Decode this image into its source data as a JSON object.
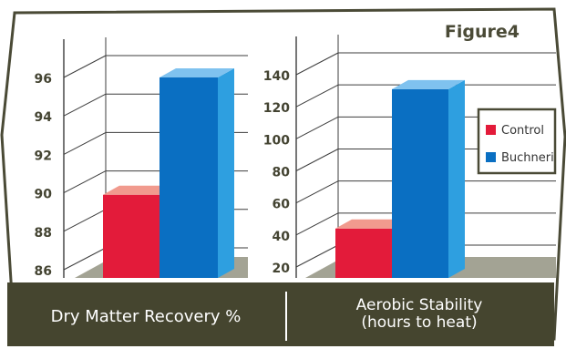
{
  "figure_label": "Figure4",
  "colors": {
    "frame": "#4a4a36",
    "band": "#45452f",
    "floor": "#a3a394",
    "control_front": "#e31b3a",
    "control_top": "#f19a8e",
    "buchneri_front": "#0a6fc2",
    "buchneri_side": "#2e9fe0",
    "buchneri_top": "#7fc2ef",
    "grid": "#3d3d3d",
    "tick_text": "#444432"
  },
  "chart_data": [
    {
      "type": "bar",
      "title": "Dry Matter Recovery %",
      "xlabel": "",
      "ylabel": "",
      "yticks": [
        86,
        88,
        90,
        92,
        94,
        96
      ],
      "ylim": [
        85,
        97
      ],
      "series": [
        {
          "name": "Control",
          "values": [
            89.9
          ]
        },
        {
          "name": "Buchneri",
          "values": [
            96.0
          ]
        }
      ],
      "grid": true
    },
    {
      "type": "bar",
      "title": "Aerobic Stability (hours to heat)",
      "title_lines": [
        "Aerobic Stability",
        "(hours to heat)"
      ],
      "xlabel": "",
      "ylabel": "",
      "yticks": [
        20,
        40,
        60,
        80,
        100,
        120,
        140
      ],
      "ylim": [
        12,
        148
      ],
      "series": [
        {
          "name": "Control",
          "values": [
            44
          ]
        },
        {
          "name": "Buchneri",
          "values": [
            131
          ]
        }
      ],
      "legend": {
        "placement": "right",
        "entries": [
          "Control",
          "Buchneri"
        ]
      },
      "grid": true
    }
  ]
}
